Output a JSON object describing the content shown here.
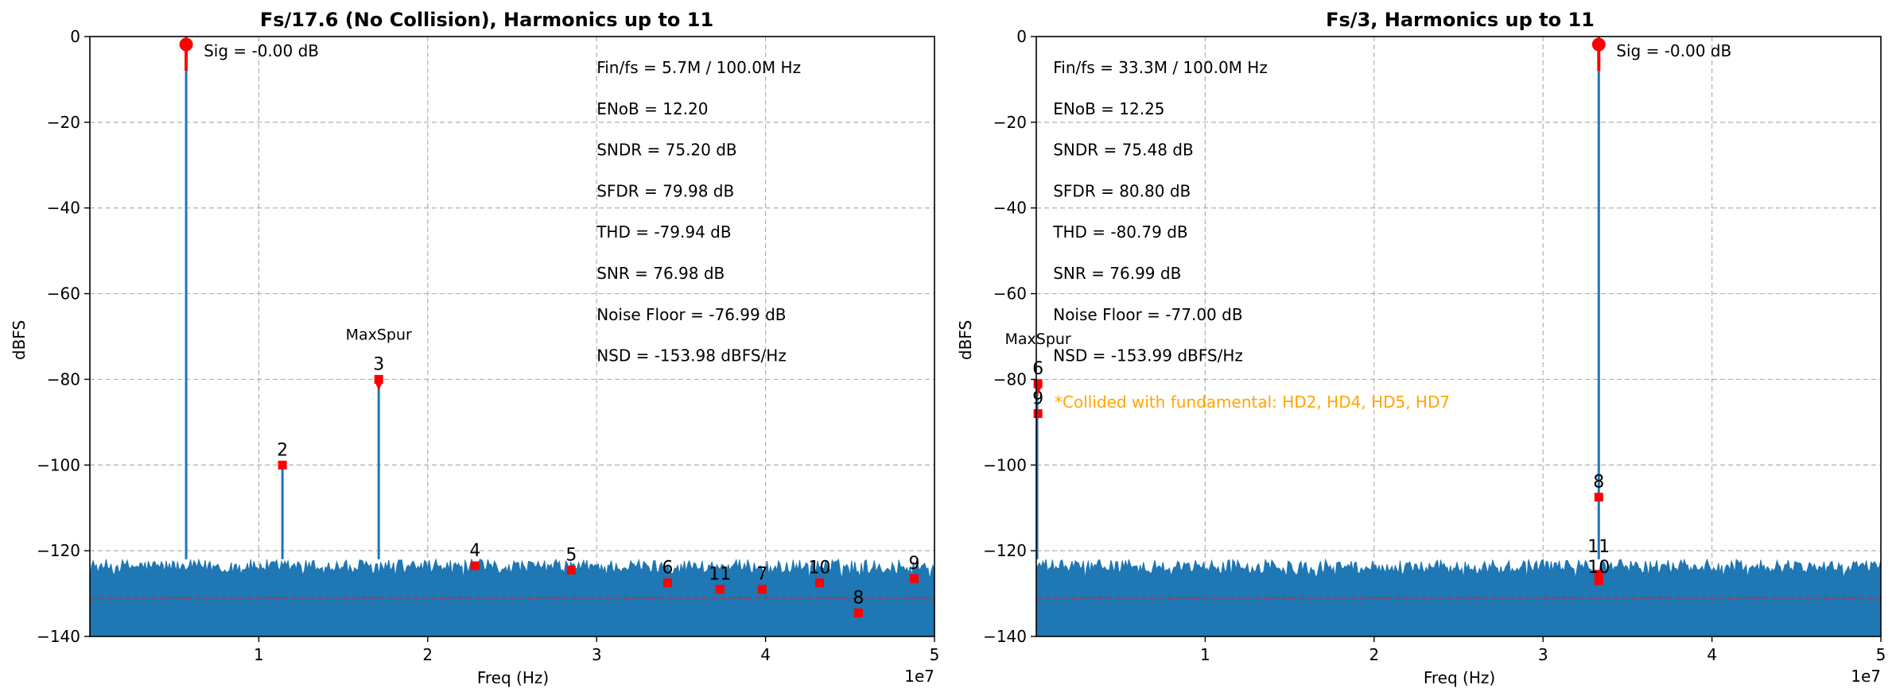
{
  "colors": {
    "spectrum": "#1f77b4",
    "marker": "#ff0000",
    "noise_line": "#d62728",
    "collision_note": "#ffa500",
    "grid": "#b0b0b0",
    "text": "#000000"
  },
  "chart_data": [
    {
      "type": "line",
      "title": "Fs/17.6 (No Collision), Harmonics up to 11",
      "xlabel": "Freq (Hz)",
      "ylabel": "dBFS",
      "x_scale_label": "1e7",
      "xlim": [
        0,
        50000000
      ],
      "ylim": [
        -140,
        0
      ],
      "x_ticks": [
        10000000,
        20000000,
        30000000,
        40000000,
        50000000
      ],
      "x_tick_labels": [
        "1",
        "2",
        "3",
        "4",
        "5"
      ],
      "y_ticks": [
        0,
        -20,
        -40,
        -60,
        -80,
        -100,
        -120,
        -140
      ],
      "y_tick_labels": [
        "0",
        "−20",
        "−40",
        "−60",
        "−80",
        "−100",
        "−120",
        "−140"
      ],
      "grid": true,
      "noise_floor_band": [
        -128,
        -122
      ],
      "noise_floor_line": -131,
      "signal": {
        "x": 5700000,
        "y": 0,
        "label": "Sig = -0.00 dB"
      },
      "harmonics": [
        {
          "label": "2",
          "x": 11400000,
          "y": -100
        },
        {
          "label": "3",
          "x": 17100000,
          "y": -80
        },
        {
          "label": "4",
          "x": 22800000,
          "y": -123.5
        },
        {
          "label": "5",
          "x": 28500000,
          "y": -124.5
        },
        {
          "label": "6",
          "x": 34200000,
          "y": -127.5
        },
        {
          "label": "11",
          "x": 37300000,
          "y": -129
        },
        {
          "label": "7",
          "x": 39800000,
          "y": -129
        },
        {
          "label": "10",
          "x": 43200000,
          "y": -127.5
        },
        {
          "label": "8",
          "x": 45500000,
          "y": -134.5
        },
        {
          "label": "9",
          "x": 48800000,
          "y": -126.5
        }
      ],
      "maxspur": {
        "label": "MaxSpur",
        "harmonic": "3",
        "x": 17100000,
        "y": -80
      },
      "spikes": [
        {
          "x": 5700000,
          "y": 0
        },
        {
          "x": 11400000,
          "y": -101
        },
        {
          "x": 17100000,
          "y": -80
        }
      ],
      "metrics": [
        "Fin/fs = 5.7M / 100.0M Hz",
        "ENoB = 12.20",
        "SNDR = 75.20 dB",
        "SFDR = 79.98 dB",
        "THD = -79.94 dB",
        "SNR = 76.98 dB",
        "Noise Floor = -76.99 dB",
        "NSD = -153.98 dBFS/Hz"
      ],
      "metrics_anchor_x": 30000000,
      "note": ""
    },
    {
      "type": "line",
      "title": "Fs/3, Harmonics up to 11",
      "xlabel": "Freq (Hz)",
      "ylabel": "dBFS",
      "x_scale_label": "1e7",
      "xlim": [
        0,
        50000000
      ],
      "ylim": [
        -140,
        0
      ],
      "x_ticks": [
        10000000,
        20000000,
        30000000,
        40000000,
        50000000
      ],
      "x_tick_labels": [
        "1",
        "2",
        "3",
        "4",
        "5"
      ],
      "y_ticks": [
        0,
        -20,
        -40,
        -60,
        -80,
        -100,
        -120,
        -140
      ],
      "y_tick_labels": [
        "0",
        "−20",
        "−40",
        "−60",
        "−80",
        "−100",
        "−120",
        "−140"
      ],
      "grid": true,
      "noise_floor_band": [
        -128,
        -122
      ],
      "noise_floor_line": -131,
      "signal": {
        "x": 33300000,
        "y": 0,
        "label": "Sig = -0.00 dB"
      },
      "harmonics": [
        {
          "label": "6",
          "x": 100000,
          "y": -81
        },
        {
          "label": "9",
          "x": 100000,
          "y": -88
        },
        {
          "label": "8",
          "x": 33300000,
          "y": -107.5
        },
        {
          "label": "11",
          "x": 33300000,
          "y": -125.5
        },
        {
          "label": "10",
          "x": 33300000,
          "y": -127
        }
      ],
      "maxspur": {
        "label": "MaxSpur",
        "harmonic": "6",
        "x": 100000,
        "y": -81
      },
      "spikes": [
        {
          "x": 33300000,
          "y": 0
        },
        {
          "x": 50000,
          "y": -81
        }
      ],
      "metrics": [
        "Fin/fs = 33.3M / 100.0M Hz",
        "ENoB = 12.25",
        "SNDR = 75.48 dB",
        "SFDR = 80.80 dB",
        "THD = -80.79 dB",
        "SNR = 76.99 dB",
        "Noise Floor = -77.00 dB",
        "NSD = -153.99 dBFS/Hz"
      ],
      "metrics_anchor_x": 1000000,
      "note": "*Collided with fundamental: HD2, HD4, HD5, HD7"
    }
  ]
}
